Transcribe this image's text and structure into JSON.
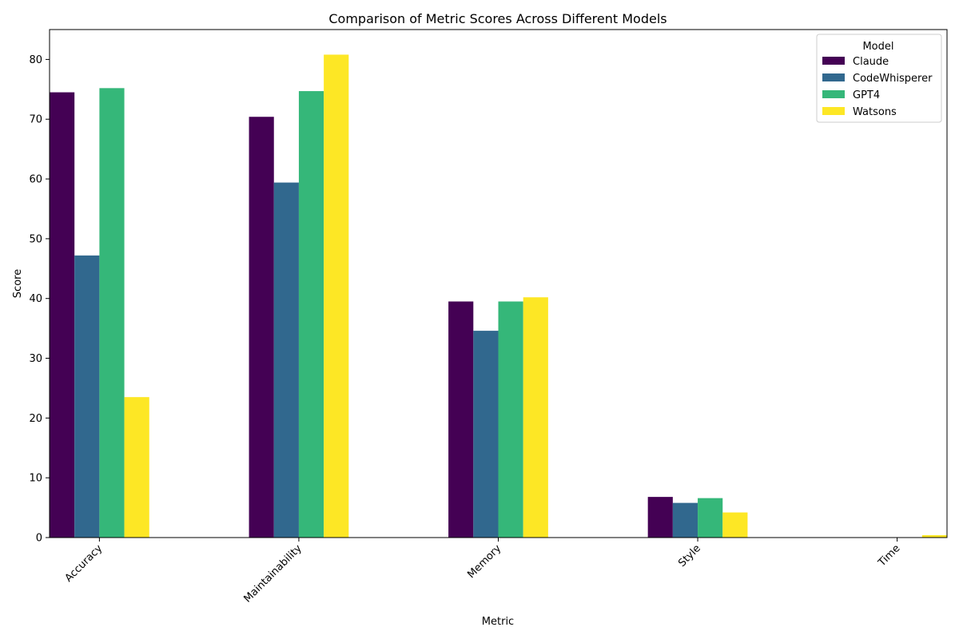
{
  "chart_data": {
    "type": "bar",
    "title": "Comparison of Metric Scores Across Different Models",
    "xlabel": "Metric",
    "ylabel": "Score",
    "categories": [
      "Accuracy",
      "Maintainability",
      "Memory",
      "Style",
      "Time"
    ],
    "ylim": [
      0,
      85
    ],
    "yticks": [
      0,
      10,
      20,
      30,
      40,
      50,
      60,
      70,
      80
    ],
    "xtick_rotation_deg": 45,
    "grid": false,
    "legend": {
      "title": "Model",
      "placement": "top-right"
    },
    "series": [
      {
        "name": "Claude",
        "color": "#440154",
        "values": [
          74.5,
          70.4,
          39.5,
          6.8,
          0.05
        ]
      },
      {
        "name": "CodeWhisperer",
        "color": "#31688e",
        "values": [
          47.2,
          59.4,
          34.6,
          5.8,
          0.05
        ]
      },
      {
        "name": "GPT4",
        "color": "#35b779",
        "values": [
          75.2,
          74.7,
          39.5,
          6.6,
          0.05
        ]
      },
      {
        "name": "Watsons",
        "color": "#fde725",
        "values": [
          23.5,
          80.8,
          40.2,
          4.2,
          0.4
        ]
      }
    ]
  }
}
